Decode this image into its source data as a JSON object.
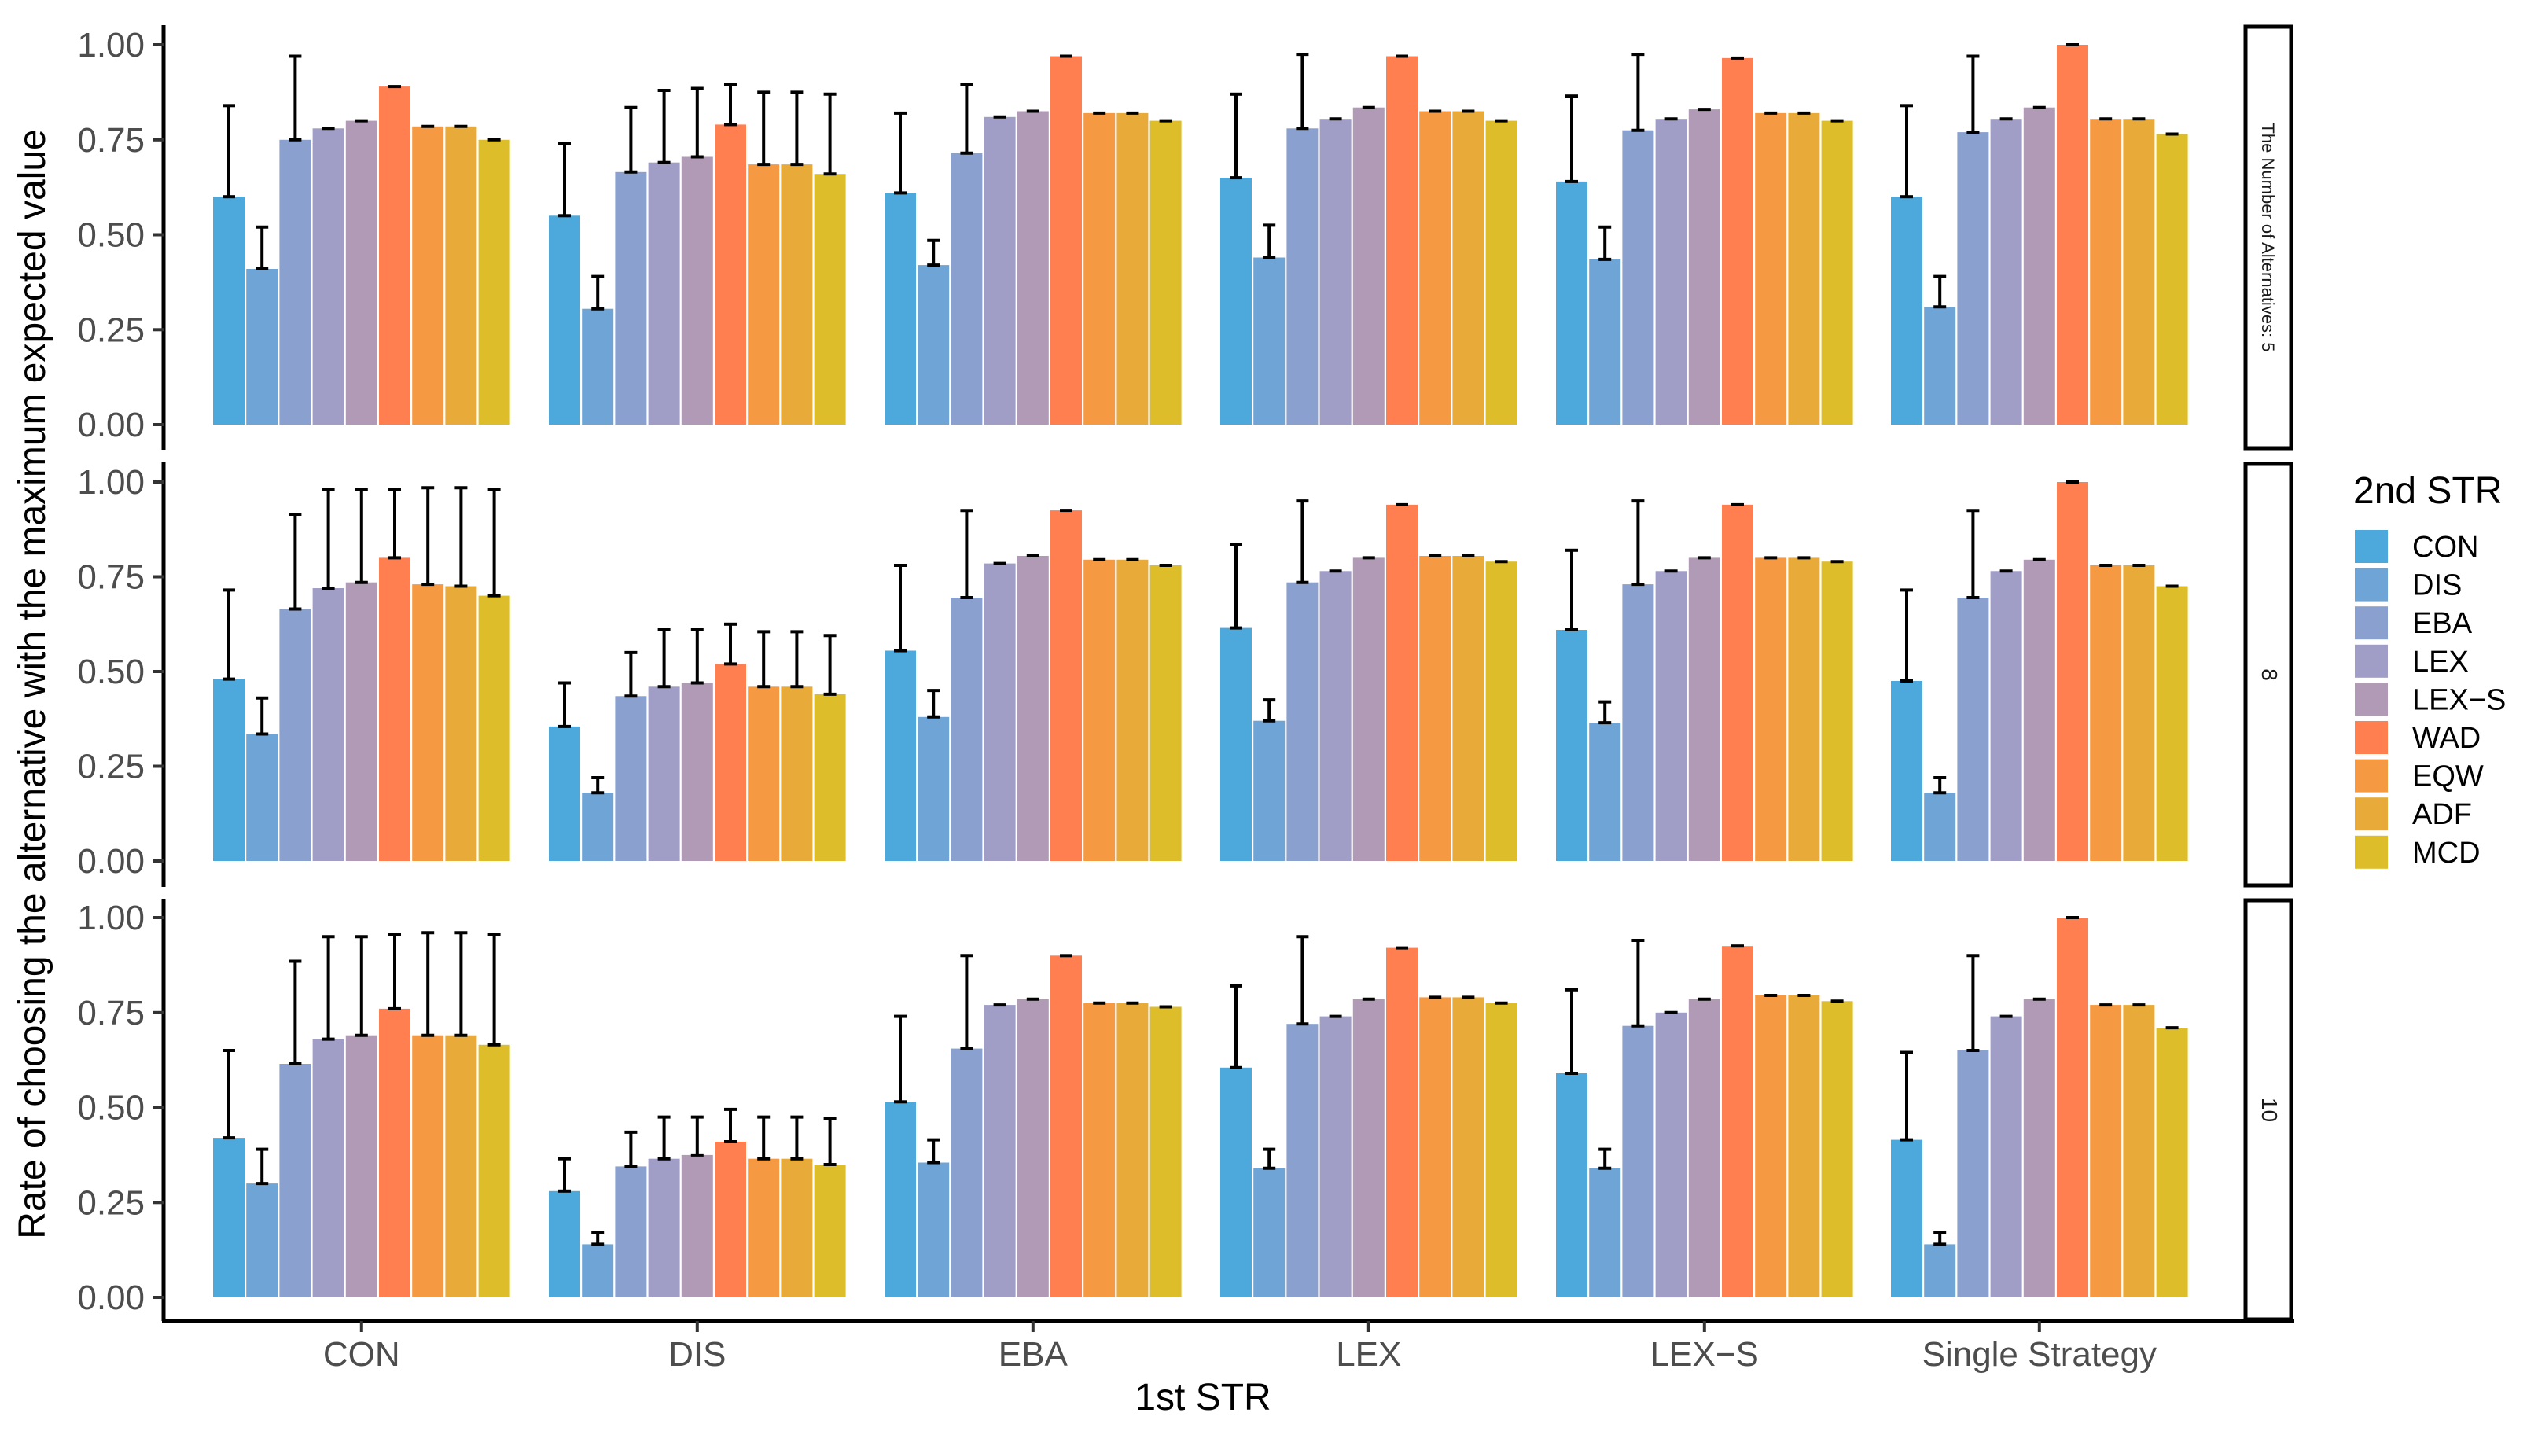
{
  "chart_data": {
    "type": "bar",
    "subtype": "faceted grouped bar with error bars",
    "xlabel": "1st STR",
    "ylabel": "Rate of choosing the alternative with the maximum expected value",
    "ylim": [
      0,
      1
    ],
    "yticks": [
      "0.00",
      "0.25",
      "0.50",
      "0.75",
      "1.00"
    ],
    "ytick_values": [
      0,
      0.25,
      0.5,
      0.75,
      1.0
    ],
    "categories": [
      "CON",
      "DIS",
      "EBA",
      "LEX",
      "LEX−S",
      "Single Strategy"
    ],
    "legend": {
      "title": "2nd STR",
      "position": "right",
      "entries": [
        "CON",
        "DIS",
        "EBA",
        "LEX",
        "LEX−S",
        "WAD",
        "EQW",
        "ADF",
        "MCD"
      ],
      "colors": [
        "#4DA9DC",
        "#6FA5D6",
        "#8AA0CF",
        "#A09DC6",
        "#B19AB5",
        "#FF7F50",
        "#F59A42",
        "#E8AB3A",
        "#DDBE2A"
      ]
    },
    "facets": [
      {
        "label": "The Number of Alternatives: 5",
        "values": [
          [
            0.6,
            0.41,
            0.75,
            0.78,
            0.8,
            0.89,
            0.785,
            0.785,
            0.75
          ],
          [
            0.55,
            0.305,
            0.665,
            0.69,
            0.705,
            0.79,
            0.685,
            0.685,
            0.66
          ],
          [
            0.61,
            0.42,
            0.715,
            0.81,
            0.825,
            0.97,
            0.82,
            0.82,
            0.8
          ],
          [
            0.65,
            0.44,
            0.78,
            0.805,
            0.835,
            0.97,
            0.825,
            0.825,
            0.8
          ],
          [
            0.64,
            0.435,
            0.775,
            0.805,
            0.83,
            0.965,
            0.82,
            0.82,
            0.8
          ],
          [
            0.6,
            0.31,
            0.77,
            0.805,
            0.835,
            1.0,
            0.805,
            0.805,
            0.765
          ]
        ],
        "errors": [
          [
            0.24,
            0.11,
            0.22,
            0,
            0,
            0,
            0,
            0,
            0
          ],
          [
            0.19,
            0.085,
            0.17,
            0.19,
            0.18,
            0.105,
            0.19,
            0.19,
            0.21
          ],
          [
            0.21,
            0.065,
            0.18,
            0,
            0,
            0,
            0,
            0,
            0
          ],
          [
            0.22,
            0.085,
            0.195,
            0,
            0,
            0,
            0,
            0,
            0
          ],
          [
            0.225,
            0.085,
            0.2,
            0,
            0,
            0,
            0,
            0,
            0
          ],
          [
            0.24,
            0.08,
            0.2,
            0,
            0,
            0,
            0,
            0,
            0
          ]
        ]
      },
      {
        "label": "8",
        "values": [
          [
            0.48,
            0.335,
            0.665,
            0.72,
            0.735,
            0.8,
            0.73,
            0.725,
            0.7
          ],
          [
            0.355,
            0.18,
            0.435,
            0.46,
            0.47,
            0.52,
            0.46,
            0.46,
            0.44
          ],
          [
            0.555,
            0.38,
            0.695,
            0.785,
            0.805,
            0.925,
            0.795,
            0.795,
            0.78
          ],
          [
            0.615,
            0.37,
            0.735,
            0.765,
            0.8,
            0.94,
            0.805,
            0.805,
            0.79
          ],
          [
            0.61,
            0.365,
            0.73,
            0.765,
            0.8,
            0.94,
            0.8,
            0.8,
            0.79
          ],
          [
            0.475,
            0.18,
            0.695,
            0.765,
            0.795,
            1.0,
            0.78,
            0.78,
            0.725
          ]
        ],
        "errors": [
          [
            0.235,
            0.095,
            0.25,
            0.26,
            0.245,
            0.18,
            0.255,
            0.26,
            0.28
          ],
          [
            0.115,
            0.04,
            0.115,
            0.15,
            0.14,
            0.105,
            0.145,
            0.145,
            0.155
          ],
          [
            0.225,
            0.07,
            0.23,
            0,
            0,
            0,
            0,
            0,
            0
          ],
          [
            0.22,
            0.055,
            0.215,
            0,
            0,
            0,
            0,
            0,
            0
          ],
          [
            0.21,
            0.055,
            0.22,
            0,
            0,
            0,
            0,
            0,
            0
          ],
          [
            0.24,
            0.04,
            0.23,
            0,
            0,
            0,
            0,
            0,
            0
          ]
        ]
      },
      {
        "label": "10",
        "values": [
          [
            0.42,
            0.3,
            0.615,
            0.68,
            0.69,
            0.76,
            0.69,
            0.69,
            0.665
          ],
          [
            0.28,
            0.14,
            0.345,
            0.365,
            0.375,
            0.41,
            0.365,
            0.365,
            0.35
          ],
          [
            0.515,
            0.355,
            0.655,
            0.77,
            0.785,
            0.9,
            0.775,
            0.775,
            0.765
          ],
          [
            0.605,
            0.34,
            0.72,
            0.74,
            0.785,
            0.92,
            0.79,
            0.79,
            0.775
          ],
          [
            0.59,
            0.34,
            0.715,
            0.75,
            0.785,
            0.925,
            0.795,
            0.795,
            0.78
          ],
          [
            0.415,
            0.14,
            0.65,
            0.74,
            0.785,
            1.0,
            0.77,
            0.77,
            0.71
          ]
        ],
        "errors": [
          [
            0.23,
            0.09,
            0.27,
            0.27,
            0.26,
            0.195,
            0.27,
            0.27,
            0.29
          ],
          [
            0.085,
            0.03,
            0.09,
            0.11,
            0.1,
            0.085,
            0.11,
            0.11,
            0.12
          ],
          [
            0.225,
            0.06,
            0.245,
            0,
            0,
            0,
            0,
            0,
            0
          ],
          [
            0.215,
            0.05,
            0.23,
            0,
            0,
            0,
            0,
            0,
            0
          ],
          [
            0.22,
            0.05,
            0.225,
            0,
            0,
            0,
            0,
            0,
            0
          ],
          [
            0.23,
            0.03,
            0.25,
            0,
            0,
            0,
            0,
            0,
            0
          ]
        ]
      }
    ]
  }
}
